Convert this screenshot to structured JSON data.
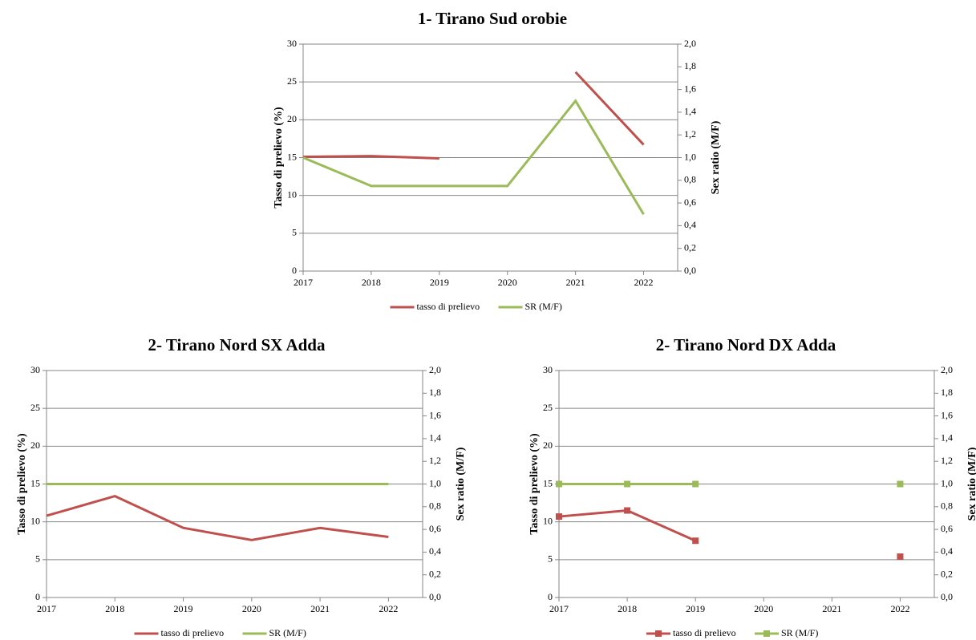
{
  "chart_data": [
    {
      "type": "line",
      "title": "1- Tirano Sud orobie",
      "ylabel": "Tasso di prelievo (%)",
      "y2label": "Sex ratio (M/F)",
      "categories": [
        "2017",
        "2018",
        "2019",
        "2020",
        "2021",
        "2022"
      ],
      "series": [
        {
          "name": "tasso di prelievo",
          "color": "#c0504d",
          "values": [
            15.1,
            15.2,
            14.9,
            null,
            26.3,
            16.7
          ]
        },
        {
          "name": "SR (M/F)",
          "color": "#9bbb59",
          "axis": "y2",
          "values": [
            1.0,
            0.75,
            0.75,
            0.75,
            1.5,
            0.5
          ]
        }
      ],
      "ylim": [
        0,
        30
      ],
      "yticks": [
        0,
        5,
        10,
        15,
        20,
        25,
        30
      ],
      "y2lim": [
        0,
        2
      ],
      "y2ticks": [
        {
          "value": 0,
          "label": "0,0"
        },
        {
          "value": 0.2,
          "label": "0,2"
        },
        {
          "value": 0.4,
          "label": "0,4"
        },
        {
          "value": 0.6,
          "label": "0,6"
        },
        {
          "value": 0.8,
          "label": "0,8"
        },
        {
          "value": 1.0,
          "label": "1,0"
        },
        {
          "value": 1.2,
          "label": "1,2"
        },
        {
          "value": 1.4,
          "label": "1,4"
        },
        {
          "value": 1.6,
          "label": "1,6"
        },
        {
          "value": 1.8,
          "label": "1,8"
        },
        {
          "value": 2.0,
          "label": "2,0"
        }
      ],
      "grid": true,
      "markers": false,
      "legend": "bottom"
    },
    {
      "type": "line",
      "title": "2- Tirano Nord SX Adda",
      "ylabel": "Tasso di prelievo (%)",
      "y2label": "Sex ratio (M/F)",
      "categories": [
        "2017",
        "2018",
        "2019",
        "2020",
        "2021",
        "2022"
      ],
      "series": [
        {
          "name": "tasso di prelievo",
          "color": "#c0504d",
          "values": [
            10.8,
            13.4,
            9.2,
            7.6,
            9.2,
            8.0
          ]
        },
        {
          "name": "SR (M/F)",
          "color": "#9bbb59",
          "axis": "y2",
          "values": [
            1.0,
            1.0,
            1.0,
            1.0,
            1.0,
            1.0
          ]
        }
      ],
      "ylim": [
        0,
        30
      ],
      "yticks": [
        0,
        5,
        10,
        15,
        20,
        25,
        30
      ],
      "y2lim": [
        0,
        2
      ],
      "y2ticks": [
        {
          "value": 0,
          "label": "0,0"
        },
        {
          "value": 0.2,
          "label": "0,2"
        },
        {
          "value": 0.4,
          "label": "0,4"
        },
        {
          "value": 0.6,
          "label": "0,6"
        },
        {
          "value": 0.8,
          "label": "0,8"
        },
        {
          "value": 1.0,
          "label": "1,0"
        },
        {
          "value": 1.2,
          "label": "1,2"
        },
        {
          "value": 1.4,
          "label": "1,4"
        },
        {
          "value": 1.6,
          "label": "1,6"
        },
        {
          "value": 1.8,
          "label": "1,8"
        },
        {
          "value": 2.0,
          "label": "2,0"
        }
      ],
      "grid": true,
      "markers": false,
      "legend": "bottom"
    },
    {
      "type": "line",
      "title": "2- Tirano Nord DX Adda",
      "ylabel": "Tasso di prelievo (%)",
      "y2label": "Sex ratio (M/F)",
      "categories": [
        "2017",
        "2018",
        "2019",
        "2020",
        "2021",
        "2022"
      ],
      "series": [
        {
          "name": "tasso di prelievo",
          "color": "#c0504d",
          "values": [
            10.7,
            11.5,
            7.5,
            null,
            null,
            5.4
          ]
        },
        {
          "name": "SR (M/F)",
          "color": "#9bbb59",
          "axis": "y2",
          "values": [
            1.0,
            1.0,
            1.0,
            null,
            null,
            1.0
          ]
        }
      ],
      "ylim": [
        0,
        30
      ],
      "yticks": [
        0,
        5,
        10,
        15,
        20,
        25,
        30
      ],
      "y2lim": [
        0,
        2
      ],
      "y2ticks": [
        {
          "value": 0,
          "label": "0,0"
        },
        {
          "value": 0.2,
          "label": "0,2"
        },
        {
          "value": 0.4,
          "label": "0,4"
        },
        {
          "value": 0.6,
          "label": "0,6"
        },
        {
          "value": 0.8,
          "label": "0,8"
        },
        {
          "value": 1.0,
          "label": "1,0"
        },
        {
          "value": 1.2,
          "label": "1,2"
        },
        {
          "value": 1.4,
          "label": "1,4"
        },
        {
          "value": 1.6,
          "label": "1,6"
        },
        {
          "value": 1.8,
          "label": "1,8"
        },
        {
          "value": 2.0,
          "label": "2,0"
        }
      ],
      "grid": true,
      "markers": true,
      "legend": "bottom"
    }
  ]
}
